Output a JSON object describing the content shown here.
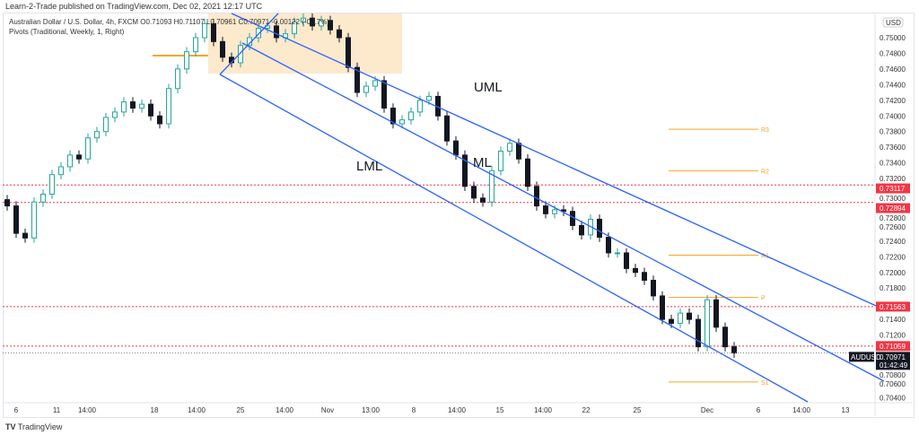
{
  "publisher": "Learn-2-Trade published on TradingView.com, Dec 02, 2021 12:17 UTC",
  "legend": {
    "line1": "Australian Dollar / U.S. Dollar, 4h, FXCM  O0.71093  H0.71107  L0.70961  C0.70971  -0.00122 (-0.17%)",
    "line2": "Pivots (Traditional, Weekly, 1, Right)"
  },
  "brand": "TradingView",
  "currency": "USD",
  "symbol": "AUDUSD",
  "countdown": "01:42:49",
  "colors": {
    "up": "#26a69a",
    "down": "#131722",
    "channel": "#2962ff",
    "pivot": "#f5a623",
    "level": "#f23645",
    "zone": "#fde9cc"
  },
  "chart_data": {
    "type": "candlestick",
    "title": "Australian Dollar / U.S. Dollar, 4h",
    "ylim": [
      0.703,
      0.7525
    ],
    "y_ticks": [
      "0.75000",
      "0.74800",
      "0.74600",
      "0.74400",
      "0.74200",
      "0.74000",
      "0.73800",
      "0.73600",
      "0.73400",
      "0.73200",
      "0.73000",
      "0.72800",
      "0.72600",
      "0.72400",
      "0.72200",
      "0.72000",
      "0.71800",
      "0.71400",
      "0.71200",
      "0.70800",
      "0.70600",
      "0.70400"
    ],
    "x_ticks": [
      "6",
      "11",
      "14:00",
      "18",
      "14:00",
      "25",
      "14:00",
      "Nov",
      "13:00",
      "8",
      "14:00",
      "15",
      "14:00",
      "22",
      "25",
      "Dec",
      "6",
      "14:00",
      "13"
    ],
    "closes": [
      0.7285,
      0.725,
      0.7244,
      0.729,
      0.73,
      0.7325,
      0.7335,
      0.735,
      0.7345,
      0.7372,
      0.738,
      0.7398,
      0.7405,
      0.7418,
      0.741,
      0.7415,
      0.74,
      0.739,
      0.7435,
      0.746,
      0.7482,
      0.75,
      0.7518,
      0.7495,
      0.7475,
      0.7468,
      0.749,
      0.75,
      0.7512,
      0.7515,
      0.75,
      0.7505,
      0.752,
      0.7525,
      0.7515,
      0.7522,
      0.751,
      0.75,
      0.7462,
      0.743,
      0.7438,
      0.7445,
      0.741,
      0.739,
      0.7395,
      0.7405,
      0.742,
      0.7425,
      0.74,
      0.7368,
      0.735,
      0.731,
      0.7295,
      0.729,
      0.733,
      0.7355,
      0.7365,
      0.7345,
      0.731,
      0.7285,
      0.7275,
      0.728,
      0.7278,
      0.726,
      0.7248,
      0.7268,
      0.7245,
      0.7225,
      0.7225,
      0.7205,
      0.72,
      0.719,
      0.717,
      0.714,
      0.7135,
      0.7148,
      0.714,
      0.7105,
      0.7165,
      0.713,
      0.7105,
      0.7097
    ],
    "levels": [
      {
        "value": "0.73117"
      },
      {
        "value": "0.72894"
      },
      {
        "value": "0.71563"
      },
      {
        "value": "0.71059"
      }
    ],
    "last_price": "0.70971",
    "pivots": [
      {
        "name": "R3",
        "value": 0.7383
      },
      {
        "name": "R2",
        "value": 0.733
      },
      {
        "name": "R1",
        "value": 0.7222
      },
      {
        "name": "P",
        "value": 0.7168
      },
      {
        "name": "S1",
        "value": 0.706
      }
    ],
    "annotations": [
      "UML",
      "ML",
      "LML"
    ]
  }
}
